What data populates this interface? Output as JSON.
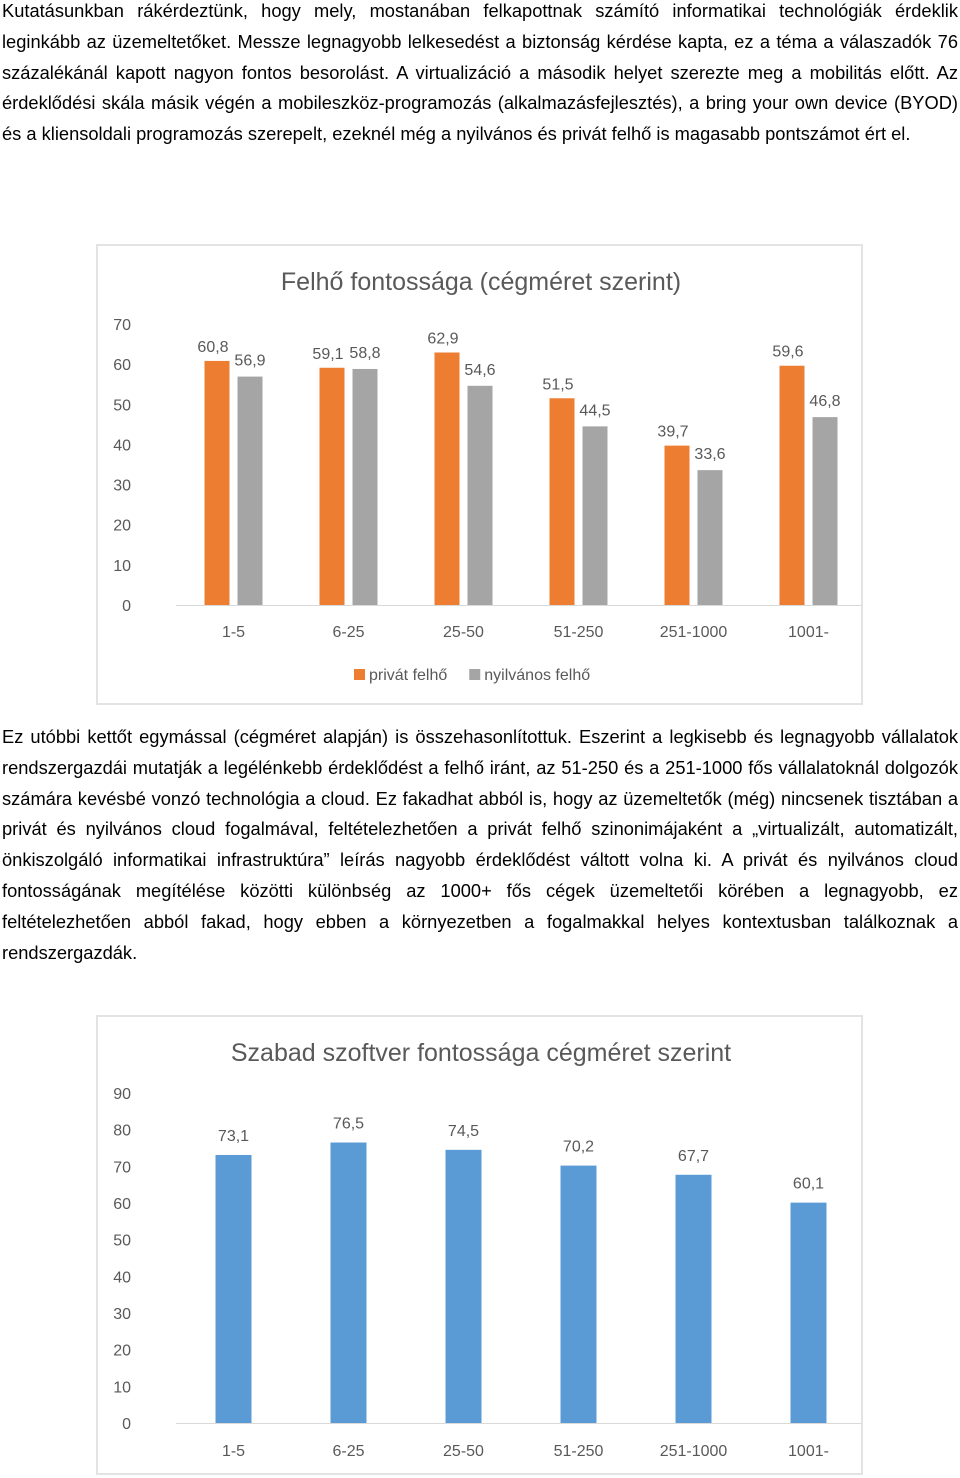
{
  "paragraphs": {
    "p1": "Kutatásunkban rákérdeztünk, hogy mely, mostanában felkapottnak számító informatikai technológiák érdeklik leginkább az üzemeltetőket. Messze legnagyobb lelkesedést a biztonság kérdése kapta, ez a téma a válaszadók 76 százalékánál kapott nagyon fontos besorolást. A virtualizáció a második helyet szerezte meg a mobilitás előtt. Az érdeklődési skála másik végén a mobileszköz-programozás (alkalmazásfejlesztés), a bring your own device (BYOD) és a kliensoldali programozás szerepelt, ezeknél még a nyilvános és privát felhő is magasabb pontszámot ért el.",
    "p2": " Ez utóbbi kettőt egymással (cégméret alapján) is összehasonlítottuk. Eszerint a legkisebb és legnagyobb vállalatok rendszergazdái mutatják a legélénkebb érdeklődést a felhő iránt, az 51-250 és a 251-1000 fős vállalatoknál dolgozók számára kevésbé vonzó technológia a cloud. Ez fakadhat abból is, hogy az üzemeltetők (még) nincsenek tisztában a privát és nyilvános cloud fogalmával, feltételezhetően a privát felhő szinonimájaként a „virtualizált, automatizált, önkiszolgáló informatikai infrastruktúra” leírás nagyobb érdeklődést váltott volna ki. A privát és nyilvános cloud fontosságának megítélése közötti különbség az 1000+ fős cégek üzemeltetői körében a legnagyobb, ez feltételezhetően abból fakad, hogy ebben a környezetben a fogalmakkal helyes kontextusban találkoznak a rendszergazdák."
  },
  "chart_data": [
    {
      "type": "bar",
      "title": "Felhő fontossága (cégméret szerint)",
      "categories": [
        "1-5",
        "6-25",
        "25-50",
        "51-250",
        "251-1000",
        "1001-"
      ],
      "series": [
        {
          "name": "privát felhő",
          "values": [
            60.8,
            59.1,
            62.9,
            51.5,
            39.7,
            59.6
          ],
          "labels": [
            "60,8",
            "59,1",
            "62,9",
            "51,5",
            "39,7",
            "59,6"
          ],
          "color": "#ED7D31"
        },
        {
          "name": "nyilvános felhő",
          "values": [
            56.9,
            58.8,
            54.6,
            44.5,
            33.6,
            46.8
          ],
          "labels": [
            "56,9",
            "58,8",
            "54,6",
            "44,5",
            "33,6",
            "46,8"
          ],
          "color": "#A5A5A5"
        }
      ],
      "yticks": [
        "0",
        "10",
        "20",
        "30",
        "40",
        "50",
        "60",
        "70"
      ],
      "ylim": [
        0,
        70
      ],
      "grid": false,
      "legend": "bottom"
    },
    {
      "type": "bar",
      "title": "Szabad szoftver fontossága cégméret szerint",
      "categories": [
        "1-5",
        "6-25",
        "25-50",
        "51-250",
        "251-1000",
        "1001-"
      ],
      "series": [
        {
          "values": [
            73.1,
            76.5,
            74.5,
            70.2,
            67.7,
            60.1
          ],
          "labels": [
            "73,1",
            "76,5",
            "74,5",
            "70,2",
            "67,7",
            "60,1"
          ],
          "color": "#5B9BD5"
        }
      ],
      "yticks": [
        "0",
        "10",
        "20",
        "30",
        "40",
        "50",
        "60",
        "70",
        "80",
        "90"
      ],
      "ylim": [
        0,
        90
      ],
      "grid": false,
      "legend": "none"
    }
  ]
}
